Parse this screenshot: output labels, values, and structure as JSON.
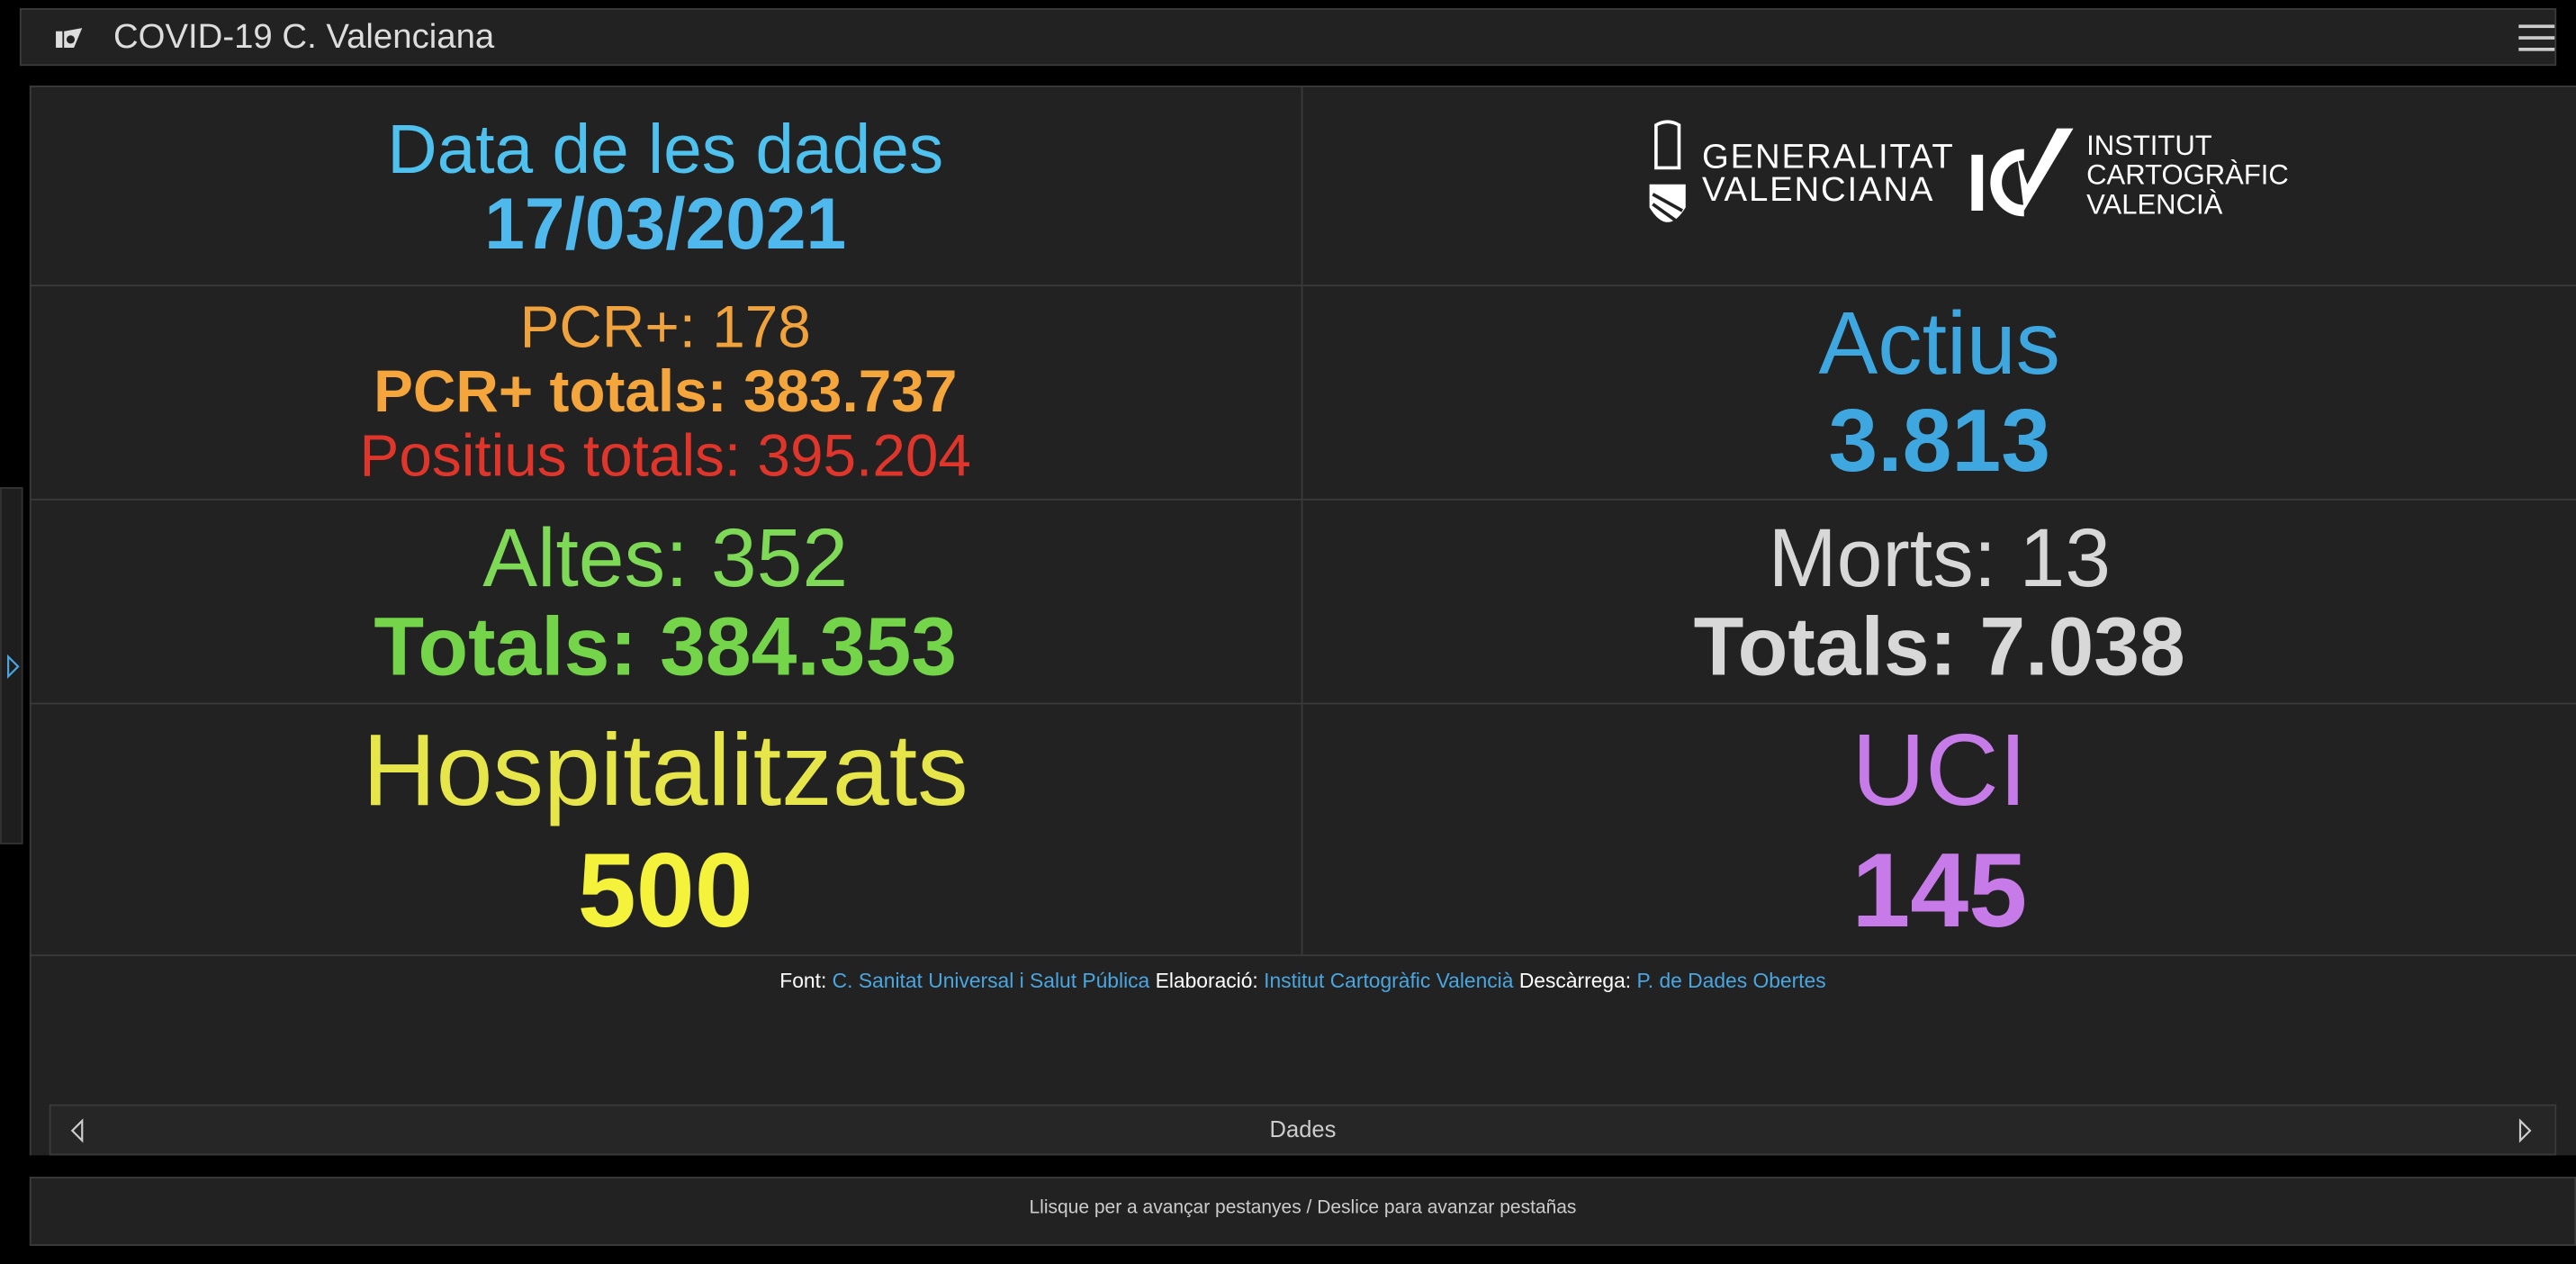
{
  "header": {
    "title": "COVID-19 C. Valenciana"
  },
  "panel": {
    "date": {
      "label": "Data de les dades",
      "value": "17/03/2021"
    },
    "logos": {
      "gva": [
        "GENERALITAT",
        "VALENCIANA"
      ],
      "icv": [
        "INSTITUT",
        "CARTOGRÀFIC",
        "VALENCIÀ"
      ]
    },
    "pcr": {
      "daily": "PCR+: 178",
      "total": "PCR+ totals: 383.737",
      "positive_total": "Positius totals: 395.204"
    },
    "active": {
      "label": "Actius",
      "value": "3.813"
    },
    "recovered": {
      "daily": "Altes: 352",
      "total": "Totals: 384.353"
    },
    "deaths": {
      "daily": "Morts: 13",
      "total": "Totals: 7.038"
    },
    "hospitalized": {
      "label": "Hospitalitzats",
      "value": "500"
    },
    "icu": {
      "label": "UCI",
      "value": "145"
    }
  },
  "sources": {
    "source_label": "Font:",
    "source": "C. Sanitat Universal i Salut Pública",
    "made_label": "Elaboració:",
    "made": "Institut Cartogràfic Valencià",
    "download_label": "Descàrrega:",
    "download": "P. de Dades Obertes"
  },
  "nav": {
    "label": "Dades"
  },
  "hint": "Llisque per a avançar pestanyes / Deslice para avanzar pestañas"
}
